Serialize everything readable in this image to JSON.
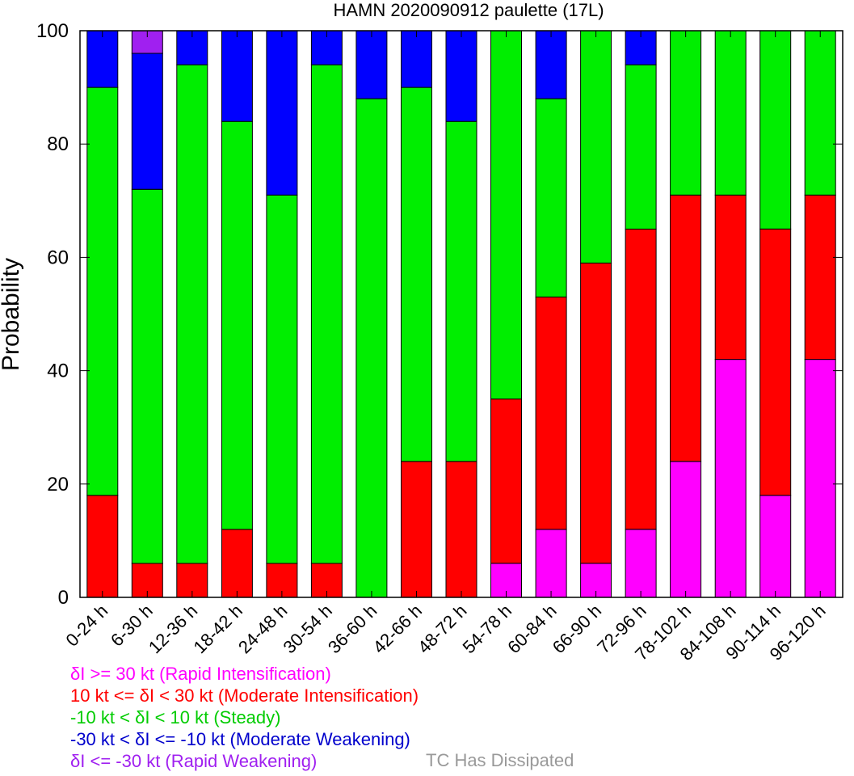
{
  "chart_data": {
    "type": "bar",
    "stacked": true,
    "title": "HAMN 2020090912 paulette (17L)",
    "ylabel": "Probability",
    "xlabel": "",
    "ylim": [
      0,
      100
    ],
    "yticks": [
      0,
      20,
      40,
      60,
      80,
      100
    ],
    "grid": false,
    "categories": [
      "0-24 h",
      "6-30 h",
      "12-36 h",
      "18-42 h",
      "24-48 h",
      "30-54 h",
      "36-60 h",
      "42-66 h",
      "48-72 h",
      "54-78 h",
      "60-84 h",
      "66-90 h",
      "72-96 h",
      "78-102 h",
      "84-108 h",
      "90-114 h",
      "96-120 h"
    ],
    "series": [
      {
        "name": "δI >= 30 kt (Rapid Intensification)",
        "color": "#ff00ff",
        "values": [
          0,
          0,
          0,
          0,
          0,
          0,
          0,
          0,
          0,
          6,
          12,
          6,
          12,
          24,
          42,
          18,
          42
        ]
      },
      {
        "name": "10 kt <= δI < 30 kt (Moderate Intensification)",
        "color": "#ff0000",
        "values": [
          18,
          6,
          6,
          12,
          6,
          6,
          0,
          24,
          24,
          29,
          41,
          53,
          53,
          47,
          29,
          47,
          29
        ]
      },
      {
        "name": "-10 kt < δI < 10 kt (Steady)",
        "color": "#00ee00",
        "values": [
          72,
          66,
          88,
          72,
          65,
          88,
          88,
          66,
          60,
          65,
          35,
          41,
          29,
          29,
          29,
          35,
          29
        ]
      },
      {
        "name": "-30 kt < δI <= -10 kt (Moderate Weakening)",
        "color": "#0000ff",
        "values": [
          10,
          24,
          6,
          16,
          29,
          6,
          12,
          10,
          16,
          0,
          12,
          0,
          6,
          0,
          0,
          0,
          0
        ]
      },
      {
        "name": "δI <= -30 kt (Rapid Weakening)",
        "color": "#a020f0",
        "values": [
          0,
          4,
          0,
          0,
          0,
          0,
          0,
          0,
          0,
          0,
          0,
          0,
          0,
          0,
          0,
          0,
          0
        ]
      }
    ],
    "legend": {
      "placement": "bottom-left",
      "items": [
        {
          "text": "δI >= 30 kt (Rapid Intensification)",
          "color": "#ff00ff"
        },
        {
          "text": "10 kt <= δI < 30 kt (Moderate Intensification)",
          "color": "#ff0000"
        },
        {
          "text": "-10 kt < δI < 10 kt (Steady)",
          "color": "#00cc00"
        },
        {
          "text": "-30 kt < δI <= -10 kt (Moderate Weakening)",
          "color": "#0000cc"
        },
        {
          "text": "δI <= -30 kt (Rapid Weakening)",
          "color": "#a020f0"
        }
      ],
      "dissipated": {
        "text": "TC Has Dissipated",
        "color": "#999999"
      }
    }
  }
}
